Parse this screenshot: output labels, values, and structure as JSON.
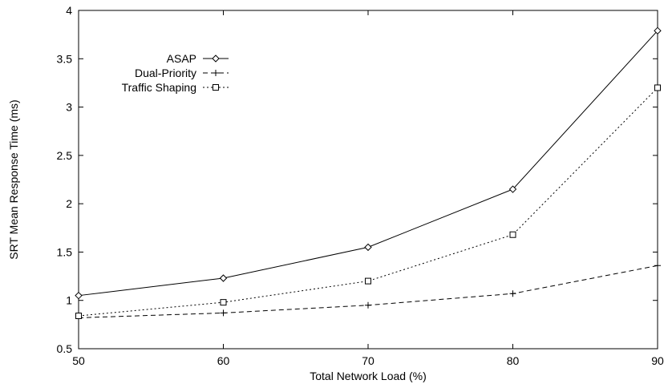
{
  "chart_data": {
    "type": "line",
    "title": "",
    "xlabel": "Total Network Load (%)",
    "ylabel": "SRT Mean Response Time (ms)",
    "x": [
      50,
      60,
      70,
      80,
      90
    ],
    "xlim": [
      50,
      90
    ],
    "ylim": [
      0.5,
      4
    ],
    "xticks": [
      50,
      60,
      70,
      80,
      90
    ],
    "yticks": [
      0.5,
      1,
      1.5,
      2,
      2.5,
      3,
      3.5,
      4
    ],
    "xtick_labels": [
      "50",
      "60",
      "70",
      "80",
      "90"
    ],
    "ytick_labels": [
      "0.5",
      "1",
      "1.5",
      "2",
      "2.5",
      "3",
      "3.5",
      "4"
    ],
    "grid": false,
    "legend_position": "top-left",
    "series": [
      {
        "name": "ASAP",
        "values": [
          1.05,
          1.23,
          1.55,
          2.15,
          3.79
        ],
        "marker": "diamond",
        "line": "solid"
      },
      {
        "name": "Dual-Priority",
        "values": [
          0.82,
          0.87,
          0.95,
          1.07,
          1.36
        ],
        "marker": "plus",
        "line": "dashed"
      },
      {
        "name": "Traffic Shaping",
        "values": [
          0.84,
          0.98,
          1.2,
          1.68,
          3.2
        ],
        "marker": "square",
        "line": "dotted"
      }
    ]
  }
}
